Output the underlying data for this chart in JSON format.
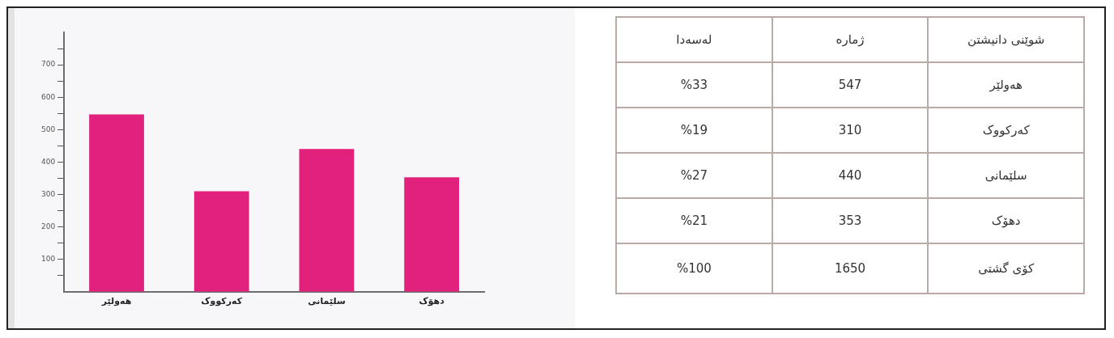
{
  "chart_data": {
    "type": "bar",
    "categories": [
      "هەولێر",
      "کەرکووک",
      "سلێمانی",
      "دهۆک"
    ],
    "values": [
      547,
      310,
      440,
      353
    ],
    "color": "#e2217d",
    "ylim": [
      0,
      800
    ],
    "yticks": [
      {
        "value": 50,
        "label": null
      },
      100,
      {
        "value": 150,
        "label": null
      },
      200,
      {
        "value": 250,
        "label": null
      },
      300,
      {
        "value": 350,
        "label": null
      },
      400,
      {
        "value": 450,
        "label": null
      },
      500,
      {
        "value": 550,
        "label": null
      },
      600,
      {
        "value": 650,
        "label": null
      },
      700,
      {
        "value": 750,
        "label": null
      }
    ],
    "grid": false,
    "legend": false,
    "annotations": [
      "شوێنی دانیشتن",
      "ژمارە",
      "لەسەدا",
      "547",
      "%33",
      "310",
      "%19",
      "440",
      "%27",
      "353",
      "%21",
      "کۆی گشتی",
      "1650",
      "%100"
    ]
  }
}
